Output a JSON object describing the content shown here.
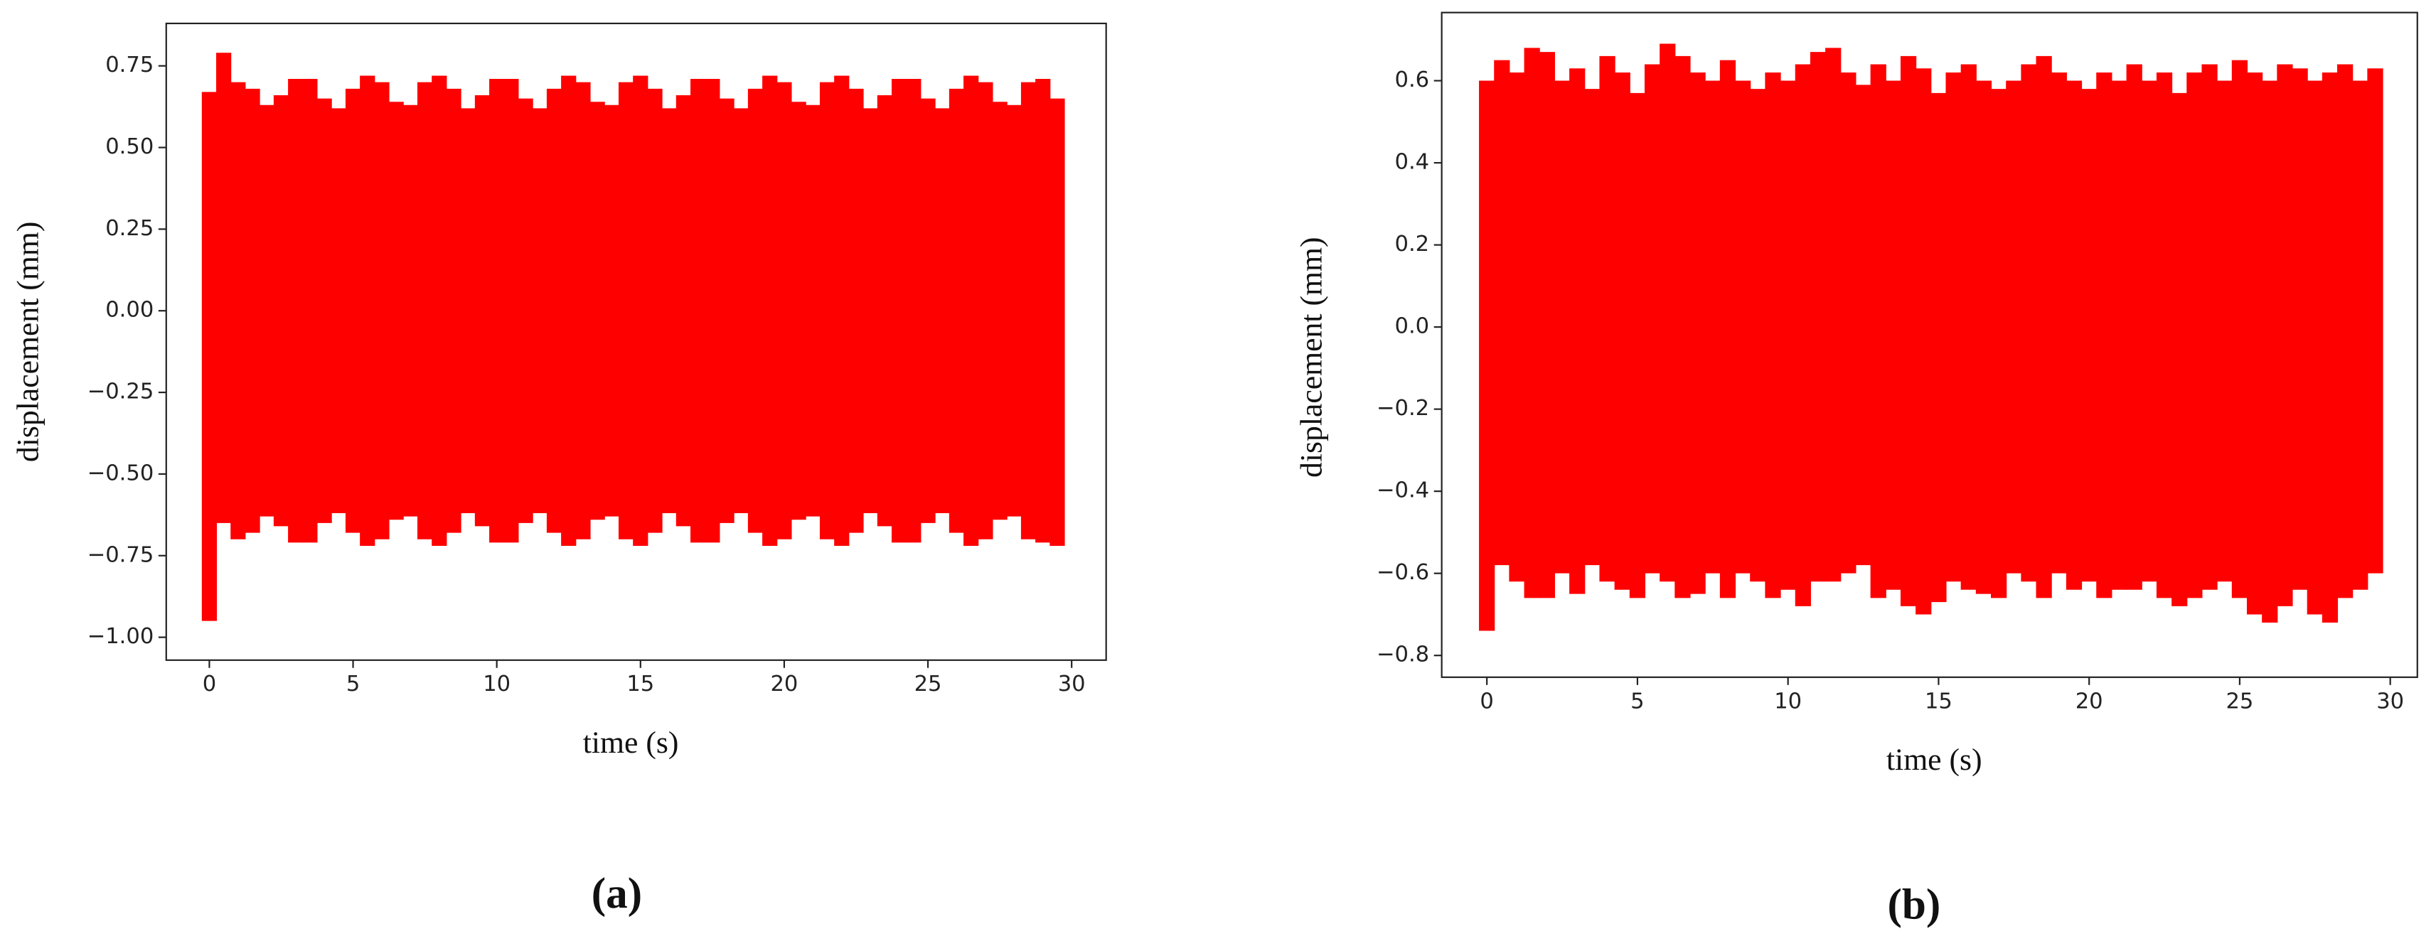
{
  "chart_data": [
    {
      "type": "area",
      "color": "#ff0000",
      "caption": "(a)",
      "xlabel": "time (s)",
      "ylabel": "displacement (mm)",
      "xlim": [
        -1.5,
        31.2
      ],
      "ylim": [
        -1.07,
        0.88
      ],
      "xticks": [
        0,
        5,
        10,
        15,
        20,
        25,
        30
      ],
      "yticks": [
        {
          "value": -1,
          "label": "−1.00"
        },
        {
          "value": -0.75,
          "label": "−0.75"
        },
        {
          "value": -0.5,
          "label": "−0.50"
        },
        {
          "value": -0.25,
          "label": "−0.25"
        },
        {
          "value": 0,
          "label": "0.00"
        },
        0.25,
        {
          "value": 0.5,
          "label": "0.50"
        },
        0.75
      ],
      "x": [
        0,
        0.5,
        1,
        1.5,
        2,
        2.5,
        3,
        3.5,
        4,
        4.5,
        5,
        5.5,
        6,
        6.5,
        7,
        7.5,
        8,
        8.5,
        9,
        9.5,
        10,
        10.5,
        11,
        11.5,
        12,
        12.5,
        13,
        13.5,
        14,
        14.5,
        15,
        15.5,
        16,
        16.5,
        17,
        17.5,
        18,
        18.5,
        19,
        19.5,
        20,
        20.5,
        21,
        21.5,
        22,
        22.5,
        23,
        23.5,
        24,
        24.5,
        25,
        25.5,
        26,
        26.5,
        27,
        27.5,
        28,
        28.5,
        29,
        29.5
      ],
      "upper": [
        0.67,
        0.79,
        0.7,
        0.68,
        0.63,
        0.66,
        0.71,
        0.71,
        0.65,
        0.62,
        0.68,
        0.72,
        0.7,
        0.64,
        0.63,
        0.7,
        0.72,
        0.68,
        0.62,
        0.66,
        0.71,
        0.71,
        0.65,
        0.62,
        0.68,
        0.72,
        0.7,
        0.64,
        0.63,
        0.7,
        0.72,
        0.68,
        0.62,
        0.66,
        0.71,
        0.71,
        0.65,
        0.62,
        0.68,
        0.72,
        0.7,
        0.64,
        0.63,
        0.7,
        0.72,
        0.68,
        0.62,
        0.66,
        0.71,
        0.71,
        0.65,
        0.62,
        0.68,
        0.72,
        0.7,
        0.64,
        0.63,
        0.7,
        0.71,
        0.65
      ],
      "lower": [
        -0.95,
        -0.65,
        -0.7,
        -0.68,
        -0.63,
        -0.66,
        -0.71,
        -0.71,
        -0.65,
        -0.62,
        -0.68,
        -0.72,
        -0.7,
        -0.64,
        -0.63,
        -0.7,
        -0.72,
        -0.68,
        -0.62,
        -0.66,
        -0.71,
        -0.71,
        -0.65,
        -0.62,
        -0.68,
        -0.72,
        -0.7,
        -0.64,
        -0.63,
        -0.7,
        -0.72,
        -0.68,
        -0.62,
        -0.66,
        -0.71,
        -0.71,
        -0.65,
        -0.62,
        -0.68,
        -0.72,
        -0.7,
        -0.64,
        -0.63,
        -0.7,
        -0.72,
        -0.68,
        -0.62,
        -0.66,
        -0.71,
        -0.71,
        -0.65,
        -0.62,
        -0.68,
        -0.72,
        -0.7,
        -0.64,
        -0.63,
        -0.7,
        -0.71,
        -0.72
      ]
    },
    {
      "type": "area",
      "color": "#ff0000",
      "caption": "(b)",
      "xlabel": "time (s)",
      "ylabel": "displacement (mm)",
      "xlim": [
        -1.5,
        30.9
      ],
      "ylim": [
        -0.853,
        0.766
      ],
      "xticks": [
        0,
        5,
        10,
        15,
        20,
        25,
        30
      ],
      "yticks": [
        {
          "value": -0.8,
          "label": "−0.8"
        },
        {
          "value": -0.6,
          "label": "−0.6"
        },
        {
          "value": -0.4,
          "label": "−0.4"
        },
        {
          "value": -0.2,
          "label": "−0.2"
        },
        {
          "value": 0,
          "label": "0.0"
        },
        0.2,
        0.4,
        0.6
      ],
      "x": [
        0,
        0.5,
        1,
        1.5,
        2,
        2.5,
        3,
        3.5,
        4,
        4.5,
        5,
        5.5,
        6,
        6.5,
        7,
        7.5,
        8,
        8.5,
        9,
        9.5,
        10,
        10.5,
        11,
        11.5,
        12,
        12.5,
        13,
        13.5,
        14,
        14.5,
        15,
        15.5,
        16,
        16.5,
        17,
        17.5,
        18,
        18.5,
        19,
        19.5,
        20,
        20.5,
        21,
        21.5,
        22,
        22.5,
        23,
        23.5,
        24,
        24.5,
        25,
        25.5,
        26,
        26.5,
        27,
        27.5,
        28,
        28.5,
        29,
        29.5
      ],
      "upper": [
        0.6,
        0.65,
        0.62,
        0.68,
        0.67,
        0.6,
        0.63,
        0.58,
        0.66,
        0.62,
        0.57,
        0.64,
        0.69,
        0.66,
        0.62,
        0.6,
        0.65,
        0.6,
        0.58,
        0.62,
        0.6,
        0.64,
        0.67,
        0.68,
        0.62,
        0.59,
        0.64,
        0.6,
        0.66,
        0.63,
        0.57,
        0.62,
        0.64,
        0.6,
        0.58,
        0.6,
        0.64,
        0.66,
        0.62,
        0.6,
        0.58,
        0.62,
        0.6,
        0.64,
        0.6,
        0.62,
        0.57,
        0.62,
        0.64,
        0.6,
        0.65,
        0.62,
        0.6,
        0.64,
        0.63,
        0.6,
        0.62,
        0.64,
        0.6,
        0.63
      ],
      "lower": [
        -0.74,
        -0.58,
        -0.62,
        -0.66,
        -0.66,
        -0.6,
        -0.65,
        -0.58,
        -0.62,
        -0.64,
        -0.66,
        -0.6,
        -0.62,
        -0.66,
        -0.65,
        -0.6,
        -0.66,
        -0.6,
        -0.62,
        -0.66,
        -0.64,
        -0.68,
        -0.62,
        -0.62,
        -0.6,
        -0.58,
        -0.66,
        -0.64,
        -0.68,
        -0.7,
        -0.67,
        -0.62,
        -0.64,
        -0.65,
        -0.66,
        -0.6,
        -0.62,
        -0.66,
        -0.6,
        -0.64,
        -0.62,
        -0.66,
        -0.64,
        -0.64,
        -0.62,
        -0.66,
        -0.68,
        -0.66,
        -0.64,
        -0.62,
        -0.66,
        -0.7,
        -0.72,
        -0.68,
        -0.64,
        -0.7,
        -0.72,
        -0.66,
        -0.64,
        -0.6
      ]
    }
  ]
}
